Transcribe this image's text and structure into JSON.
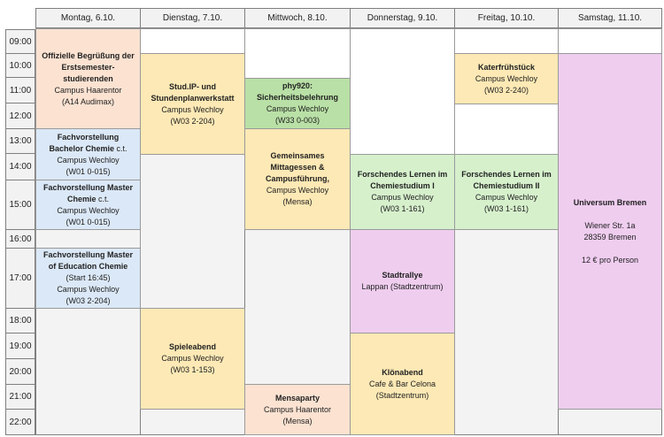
{
  "days": [
    "Montag, 6.10.",
    "Dienstag, 7.10.",
    "Mittwoch, 8.10.",
    "Donnerstag, 9.10.",
    "Freitag, 10.10.",
    "Samstag, 11.10."
  ],
  "times": [
    "09:00",
    "10:00",
    "11:00",
    "12:00",
    "13:00",
    "14:00",
    "15:00",
    "16:00",
    "17:00",
    "18:00",
    "19:00",
    "20:00",
    "21:00",
    "22:00"
  ],
  "events": {
    "mo_begruessung": {
      "title": "Offizielle Begrüßung der Erstsemester-studierenden",
      "place": "Campus Haarentor",
      "room": "(A14 Audimax)"
    },
    "mo_bachelor": {
      "title": "Fachvorstellung Bachelor Chemie",
      "suffix": " c.t.",
      "place": "Campus Wechloy",
      "room": "(W01 0-015)"
    },
    "mo_master": {
      "title": "Fachvorstellung Master Chemie",
      "suffix": " c.t.",
      "place": "Campus Wechloy",
      "room": "(W01 0-015)"
    },
    "mo_med": {
      "title": "Fachvorstellung Master of Education Chemie",
      "start": "(Start 16:45)",
      "place": "Campus Wechloy",
      "room": "(W03 2-204)"
    },
    "di_studip": {
      "title": "Stud.IP- und Stundenplanwerkstatt",
      "place": "Campus Wechloy",
      "room": "(W03 2-204)"
    },
    "di_spiele": {
      "title": "Spieleabend",
      "place": "Campus Wechloy",
      "room": "(W03 1-153)"
    },
    "mi_phy": {
      "title": "phy920: Sicherheitsbelehrung",
      "place": "Campus Wechloy",
      "room": "(W33 0-003)"
    },
    "mi_essen": {
      "title": "Gemeinsames Mittagessen & Campusführung,",
      "place": "Campus Wechloy",
      "room": "(Mensa)"
    },
    "mi_party": {
      "title": "Mensaparty",
      "place": "Campus Haarentor",
      "room": "(Mensa)"
    },
    "do_forschend": {
      "title": "Forschendes Lernen im Chemiestudium I",
      "place": "Campus Wechloy",
      "room": "(W03 1-161)"
    },
    "do_rallye": {
      "title": "Stadtrallye",
      "place": "Lappan (Stadtzentrum)"
    },
    "do_klon": {
      "title": "Klönabend",
      "place": "Cafe & Bar Celona",
      "room": "(Stadtzentrum)"
    },
    "fr_kater": {
      "title": "Katerfrühstück",
      "place": "Campus Wechloy",
      "room": "(W03 2-240)"
    },
    "fr_forschend": {
      "title": "Forschendes Lernen im Chemiestudium II",
      "place": "Campus Wechloy",
      "room": "(W03 1-161)"
    },
    "sa_uni": {
      "title": "Universum Bremen",
      "street": "Wiener Str. 1a",
      "city": "28359 Bremen",
      "price": "12 € pro Person"
    }
  },
  "colors": {
    "orange": "#fbe2d1",
    "yellow": "#fde9b5",
    "blue": "#dbe8f7",
    "green": "#d6f0cc",
    "dgreen": "#b9e0a6",
    "pink": "#efcdef"
  }
}
